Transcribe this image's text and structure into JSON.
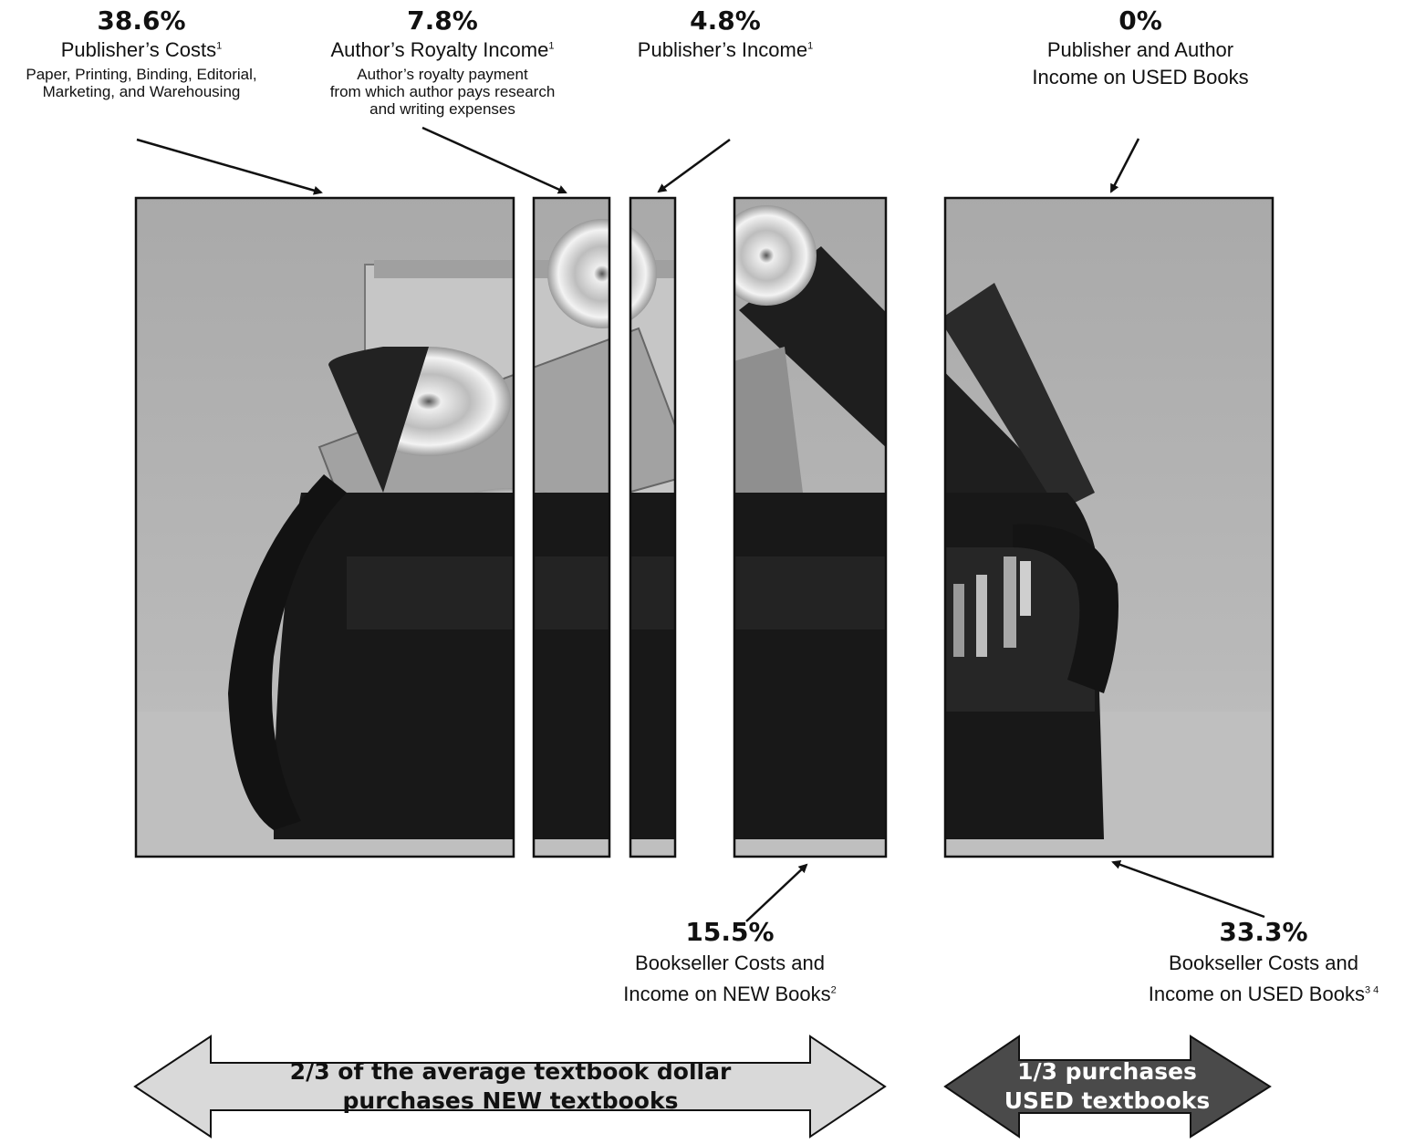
{
  "segments": [
    {
      "pct": "38.6%",
      "label": "Publisher’s Costs",
      "sup": "1",
      "desc": "Paper, Printing, Binding, Editorial, Marketing, and Warehousing"
    },
    {
      "pct": "7.8%",
      "label": "Author’s Royalty Income",
      "sup": "1",
      "desc": "Author’s royalty payment from which author pays research and writing expenses"
    },
    {
      "pct": "4.8%",
      "label": "Publisher’s Income",
      "sup": "1",
      "desc": ""
    },
    {
      "pct": "0%",
      "label_line1": "Publisher and Author",
      "label_line2": "Income on USED Books"
    },
    {
      "pct": "15.5%",
      "label_line1": "Bookseller Costs and",
      "label_line2": "Income on NEW Books",
      "sup": "2"
    },
    {
      "pct": "33.3%",
      "label_line1": "Bookseller Costs and",
      "label_line2": "Income on USED Books",
      "sup": "3 4"
    }
  ],
  "arrows": {
    "new": {
      "line1": "2/3 of the average textbook dollar",
      "line2": "purchases NEW textbooks",
      "fill": "#d9d9d9"
    },
    "used": {
      "line1": "1/3 purchases",
      "line2": "USED textbooks",
      "fill": "#4a4a4a"
    }
  },
  "desc_lines": {
    "costs": [
      "Paper, Printing, Binding, Editorial,",
      "Marketing, and Warehousing"
    ],
    "royalty": [
      "Author’s royalty payment",
      "from which author pays research",
      "and writing expenses"
    ]
  }
}
